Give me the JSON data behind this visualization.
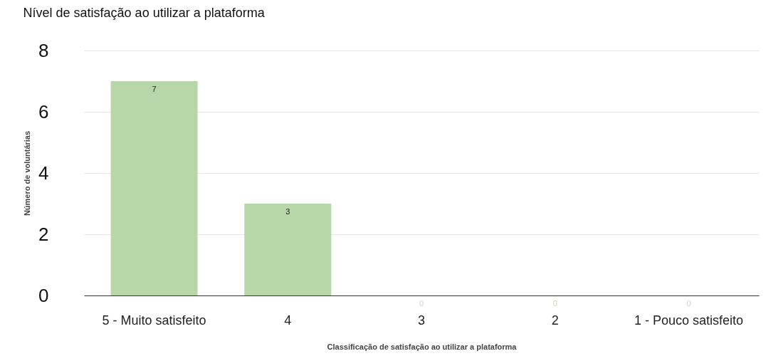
{
  "chart_data": {
    "type": "bar",
    "title": "Nível de satisfação ao utilizar a plataforma",
    "xlabel": "Classificação de satisfação ao utilizar a plataforma",
    "ylabel": "Número de voluntárias",
    "categories": [
      "5 - Muito satisfeito",
      "4",
      "3",
      "2",
      "1 - Pouco satisfeito"
    ],
    "values": [
      7,
      3,
      0,
      0,
      0
    ],
    "color": "#b7d7a8",
    "ylim": [
      0,
      8
    ],
    "yticks": [
      0,
      2,
      4,
      6,
      8
    ],
    "grid": "y",
    "data_labels": true
  }
}
